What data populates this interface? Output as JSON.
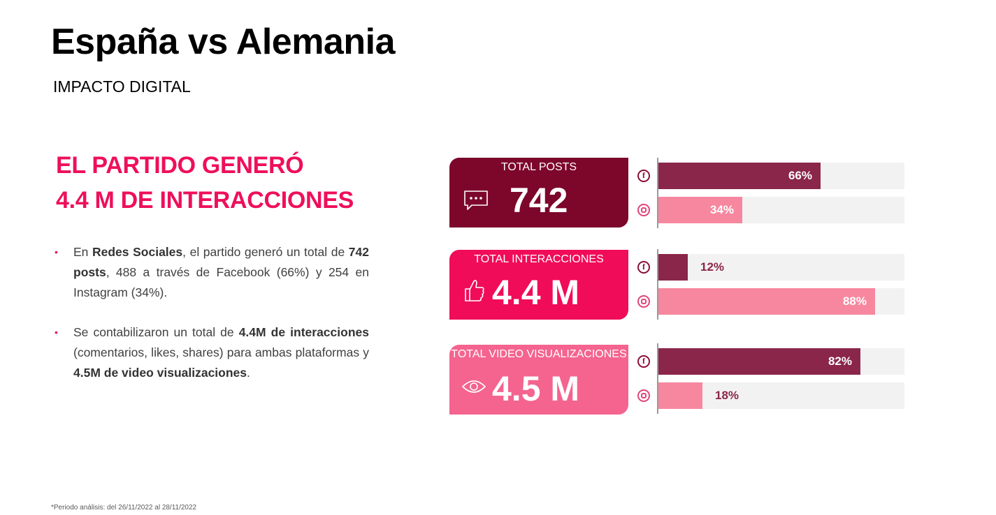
{
  "header": {
    "title": "España vs Alemania",
    "subtitle": "IMPACTO DIGITAL"
  },
  "headline": {
    "line1": "EL PARTIDO GENERÓ",
    "line2": "4.4 M DE INTERACCIONES"
  },
  "bullets": [
    {
      "parts": [
        "En ",
        "Redes Sociales",
        ", el partido generó un total de ",
        "742 posts",
        ", 488 a través de Facebook (66%) y 254 en Instagram (34%)."
      ]
    },
    {
      "parts": [
        "Se contabilizaron un total de ",
        "4.4M de interacciones",
        " (comentarios, likes, shares) para ambas plataformas y ",
        "4.5M de video visualizaciones",
        "."
      ]
    }
  ],
  "kpis": [
    {
      "label": "TOTAL POSTS",
      "value": "742",
      "icon": "chat-bubble-icon"
    },
    {
      "label": "TOTAL INTERACCIONES",
      "value": "4.4 M",
      "icon": "thumbs-up-icon"
    },
    {
      "label": "TOTAL VIDEO VISUALIZACIONES",
      "value": "4.5 M",
      "icon": "eye-icon"
    }
  ],
  "colors": {
    "accent": "#ee0f5b",
    "facebook_bar": "#8a2649",
    "instagram_bar": "#f7879f",
    "kpi_posts": "#7d062b",
    "kpi_interacciones": "#f00c59",
    "kpi_video": "#f4648f"
  },
  "chart_data": {
    "type": "bar",
    "orientation": "horizontal",
    "stacked": false,
    "groups": [
      {
        "metric": "TOTAL POSTS",
        "facebook": 66,
        "instagram": 34,
        "facebook_label": "66%",
        "instagram_label": "34%"
      },
      {
        "metric": "TOTAL INTERACCIONES",
        "facebook": 12,
        "instagram": 88,
        "facebook_label": "12%",
        "instagram_label": "88%"
      },
      {
        "metric": "TOTAL VIDEO VISUALIZACIONES",
        "facebook": 82,
        "instagram": 18,
        "facebook_label": "82%",
        "instagram_label": "18%"
      }
    ],
    "platform_icons": [
      "facebook-icon",
      "instagram-icon"
    ],
    "xlim": [
      0,
      100
    ],
    "grid": false,
    "legend": "none"
  },
  "footnote": "*Periodo análisis: del 26/11/2022 al 28/11/2022"
}
